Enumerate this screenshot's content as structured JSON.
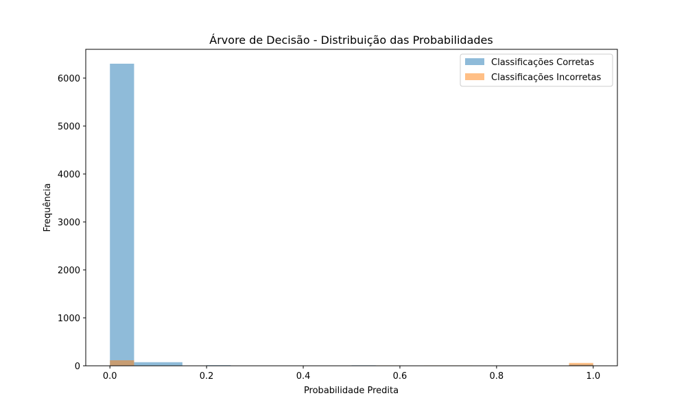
{
  "chart_data": {
    "type": "histogram",
    "title": "Árvore de Decisão - Distribuição das Probabilidades",
    "xlabel": "Probabilidade Predita",
    "ylabel": "Frequência",
    "xlim": [
      -0.05,
      1.05
    ],
    "ylim": [
      0,
      6600
    ],
    "xticks": [
      0.0,
      0.2,
      0.4,
      0.6,
      0.8,
      1.0
    ],
    "xtick_labels": [
      "0.0",
      "0.2",
      "0.4",
      "0.6",
      "0.8",
      "1.0"
    ],
    "yticks": [
      0,
      1000,
      2000,
      3000,
      4000,
      5000,
      6000
    ],
    "ytick_labels": [
      "0",
      "1000",
      "2000",
      "3000",
      "4000",
      "5000",
      "6000"
    ],
    "grid": false,
    "legend_position": "top-right",
    "series": [
      {
        "name": "Classificações Corretas",
        "color": "#1f77b4",
        "alpha": 0.5,
        "bins": [
          {
            "x0": 0.0,
            "x1": 0.05,
            "count": 6300
          },
          {
            "x0": 0.05,
            "x1": 0.15,
            "count": 75
          },
          {
            "x0": 0.2,
            "x1": 0.25,
            "count": 12
          },
          {
            "x0": 0.5,
            "x1": 0.55,
            "count": 10
          },
          {
            "x0": 0.65,
            "x1": 0.7,
            "count": 6
          },
          {
            "x0": 0.95,
            "x1": 1.0,
            "count": 25
          }
        ]
      },
      {
        "name": "Classificações Incorretas",
        "color": "#ff7f0e",
        "alpha": 0.5,
        "bins": [
          {
            "x0": 0.0,
            "x1": 0.05,
            "count": 115
          },
          {
            "x0": 0.55,
            "x1": 0.6,
            "count": 8
          },
          {
            "x0": 0.65,
            "x1": 0.75,
            "count": 8
          },
          {
            "x0": 0.95,
            "x1": 1.0,
            "count": 60
          }
        ]
      }
    ]
  }
}
